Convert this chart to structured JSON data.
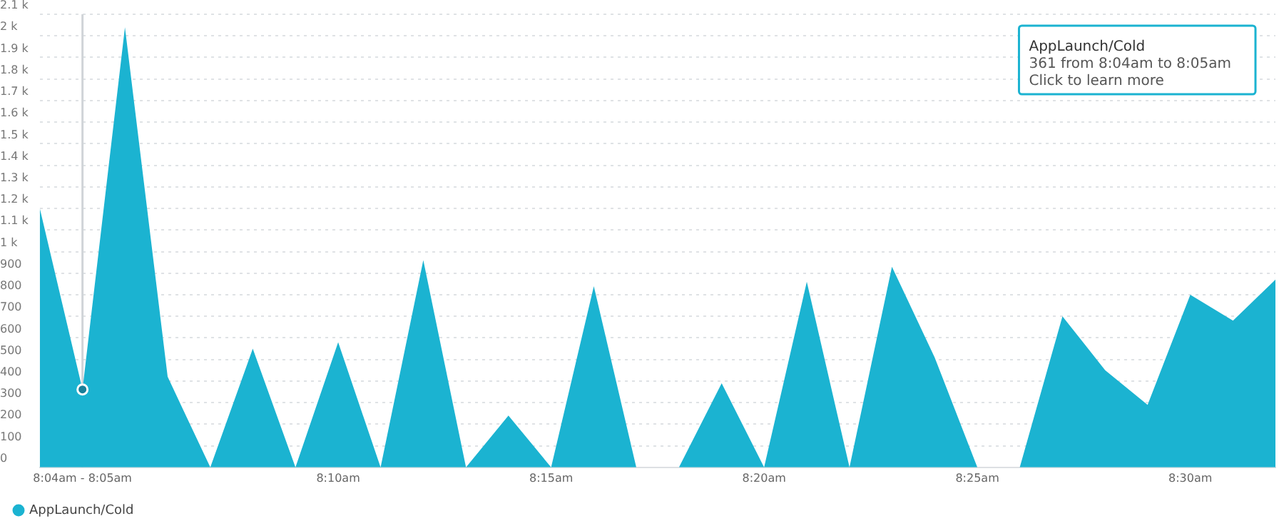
{
  "chart_data": {
    "type": "area",
    "x": [
      8.05,
      8.0667,
      8.0833,
      8.1,
      8.1167,
      8.1333,
      8.15,
      8.1667,
      8.1833,
      8.2,
      8.2167,
      8.2333,
      8.25,
      8.2667,
      8.2833,
      8.3,
      8.3167,
      8.3333,
      8.35,
      8.3667,
      8.3833,
      8.4,
      8.4167,
      8.4333,
      8.45,
      8.4667,
      8.4833,
      8.5,
      8.5167,
      8.5333
    ],
    "series": [
      {
        "name": "AppLaunch/Cold",
        "color": "#1bb3d1",
        "values": [
          1200,
          361,
          2040,
          420,
          0,
          550,
          0,
          580,
          0,
          960,
          0,
          240,
          0,
          840,
          0,
          0,
          390,
          0,
          860,
          0,
          930,
          510,
          0,
          0,
          700,
          450,
          290,
          800,
          680,
          870
        ]
      },
      {
        "type": "scatter",
        "x": [
          8.0667
        ],
        "values": [
          361
        ],
        "color": "#1a7f99",
        "marker": "circle"
      }
    ],
    "xlim": [
      8.05,
      8.5333
    ],
    "xticks": [
      {
        "value": 8.0667,
        "label": "8:04am - 8:05am"
      },
      {
        "value": 8.1667,
        "label": "8:10am"
      },
      {
        "value": 8.25,
        "label": "8:15am"
      },
      {
        "value": 8.3333,
        "label": "8:20am"
      },
      {
        "value": 8.4167,
        "label": "8:25am"
      },
      {
        "value": 8.5,
        "label": "8:30am"
      }
    ],
    "ylim": [
      0,
      2100
    ],
    "yticks": [
      0,
      100,
      200,
      300,
      400,
      500,
      600,
      700,
      800,
      900,
      {
        "value": 1000,
        "label": "1 k"
      },
      {
        "value": 1100,
        "label": "1.1 k"
      },
      {
        "value": 1200,
        "label": "1.2 k"
      },
      {
        "value": 1300,
        "label": "1.3 k"
      },
      {
        "value": 1400,
        "label": "1.4 k"
      },
      {
        "value": 1500,
        "label": "1.5 k"
      },
      {
        "value": 1600,
        "label": "1.6 k"
      },
      {
        "value": 1700,
        "label": "1.7 k"
      },
      {
        "value": 1800,
        "label": "1.8 k"
      },
      {
        "value": 1900,
        "label": "1.9 k"
      },
      {
        "value": 2000,
        "label": "2 k"
      },
      {
        "value": 2100,
        "label": "2.1 k"
      }
    ],
    "ref_lines": [
      {
        "axis": "x",
        "value": 8.0667,
        "color": "#d0d4d8"
      }
    ],
    "annotations": [
      "AppLaunch/Cold\n361 from 8:04am to 8:05am\nClick to learn more"
    ],
    "grid": "y",
    "legend": "bottom left"
  }
}
